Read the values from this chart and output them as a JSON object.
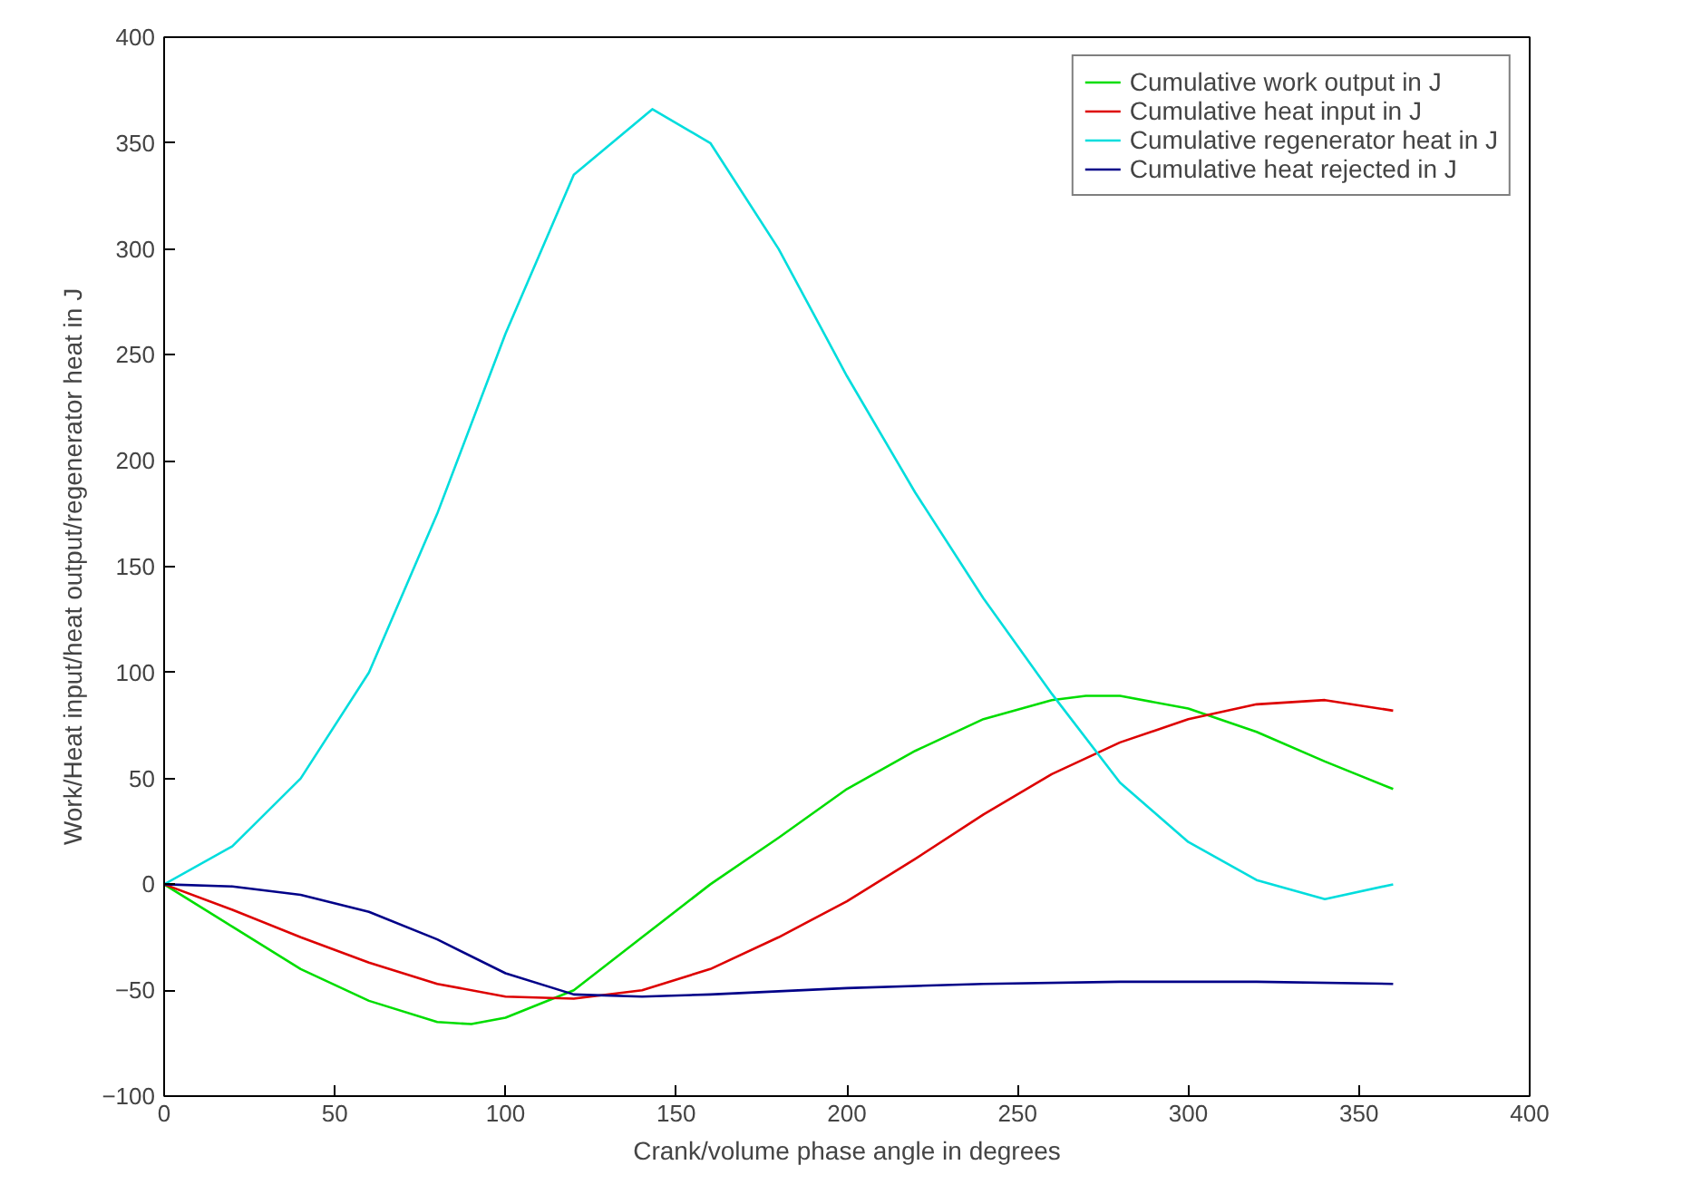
{
  "chart_data": {
    "type": "line",
    "xlabel": "Crank/volume phase angle in degrees",
    "ylabel": "Work/Heat input/heat output/regenerator heat in J",
    "xlim": [
      0,
      400
    ],
    "ylim": [
      -100,
      400
    ],
    "xticks": [
      0,
      50,
      100,
      150,
      200,
      250,
      300,
      350,
      400
    ],
    "yticks": [
      -100,
      -50,
      0,
      50,
      100,
      150,
      200,
      250,
      300,
      350,
      400
    ],
    "grid": false,
    "legend": "top right",
    "line_style": "solid",
    "marker": "none",
    "series": [
      {
        "name": "Cumulative work output in J",
        "color": "#00dd00",
        "x": [
          0,
          20,
          40,
          60,
          80,
          90,
          100,
          120,
          140,
          160,
          180,
          200,
          220,
          240,
          260,
          270,
          280,
          300,
          320,
          340,
          360
        ],
        "values": [
          0,
          -20,
          -40,
          -55,
          -65,
          -66,
          -63,
          -50,
          -25,
          0,
          22,
          45,
          63,
          78,
          87,
          89,
          89,
          83,
          72,
          58,
          45
        ]
      },
      {
        "name": "Cumulative heat input in J",
        "color": "#dd0000",
        "x": [
          0,
          20,
          40,
          60,
          80,
          100,
          120,
          140,
          160,
          180,
          200,
          220,
          240,
          260,
          280,
          300,
          320,
          340,
          360
        ],
        "values": [
          0,
          -12,
          -25,
          -37,
          -47,
          -53,
          -54,
          -50,
          -40,
          -25,
          -8,
          12,
          33,
          52,
          67,
          78,
          85,
          87,
          82
        ]
      },
      {
        "name": "Cumulative regenerator heat in J",
        "color": "#00dddd",
        "x": [
          0,
          20,
          40,
          60,
          80,
          100,
          120,
          143,
          160,
          180,
          193,
          200,
          220,
          240,
          260,
          280,
          300,
          320,
          340,
          360
        ],
        "values": [
          0,
          18,
          50,
          100,
          175,
          260,
          335,
          366,
          350,
          300,
          261,
          240,
          185,
          135,
          90,
          48,
          20,
          2,
          -7,
          0
        ]
      },
      {
        "name": "Cumulative heat rejected in J",
        "color": "#000088",
        "x": [
          0,
          20,
          40,
          60,
          80,
          100,
          120,
          140,
          160,
          200,
          240,
          280,
          320,
          360
        ],
        "values": [
          0,
          -1,
          -5,
          -13,
          -26,
          -42,
          -52,
          -53,
          -52,
          -49,
          -47,
          -46,
          -46,
          -47
        ]
      }
    ]
  }
}
